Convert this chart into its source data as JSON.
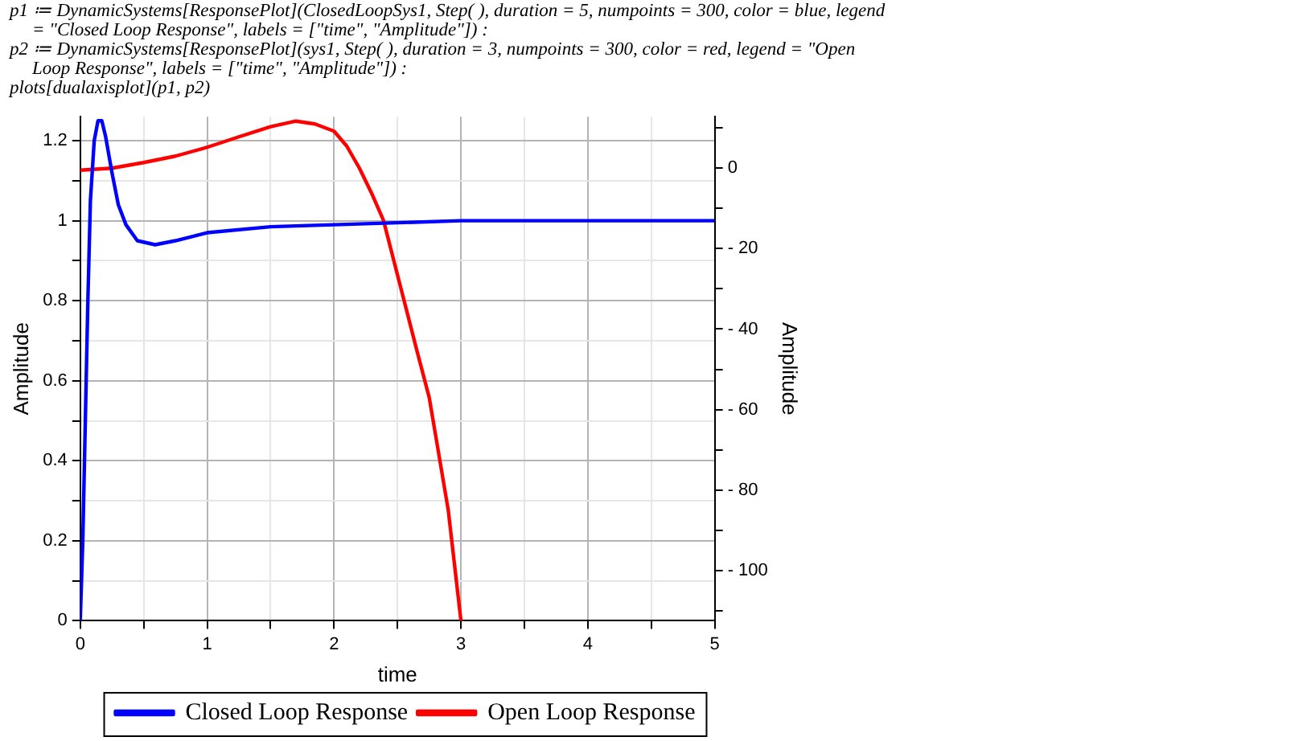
{
  "chart_data": {
    "type": "line",
    "annotations": [
      "p1 ≔ DynamicSystems[ResponsePlot](ClosedLoopSys1, Step( ), duration = 5, numpoints = 300, color = blue, legend = \"Closed Loop Response\", labels = [\"time\", \"Amplitude\"]) :",
      "p2 ≔ DynamicSystems[ResponsePlot](sys1, Step( ), duration = 3, numpoints = 300, color = red, legend = \"Open Loop Response\", labels = [\"time\", \"Amplitude\"]) :",
      "plots[dualaxisplot](p1, p2)"
    ],
    "xlabel": "time",
    "ylabel": "Amplitude",
    "y2label": "Amplitude",
    "series": [
      {
        "name": "Closed Loop Response",
        "color": "#0000ff",
        "x": [
          0,
          0.02,
          0.04,
          0.06,
          0.08,
          0.11,
          0.14,
          0.17,
          0.2,
          0.25,
          0.3,
          0.36,
          0.45,
          0.59,
          0.75,
          1,
          1.5,
          2,
          2.5,
          3,
          4,
          5
        ],
        "values": [
          0,
          0.2,
          0.5,
          0.8,
          1.05,
          1.2,
          1.25,
          1.25,
          1.21,
          1.12,
          1.04,
          0.99,
          0.95,
          0.94,
          0.95,
          0.97,
          0.985,
          0.99,
          0.995,
          1,
          1,
          1
        ]
      },
      {
        "name": "Open Loop Response",
        "color": "#ff0000",
        "axis": "y2",
        "x": [
          0,
          0.25,
          0.5,
          0.75,
          1,
          1.25,
          1.5,
          1.7,
          1.85,
          2,
          2.1,
          2.2,
          2.3,
          2.39,
          2.52,
          2.65,
          2.75,
          2.9,
          3
        ],
        "values": [
          -0.5,
          0,
          1.4,
          3,
          5.2,
          7.8,
          10.3,
          11.7,
          11,
          9.2,
          5.5,
          0,
          -6.5,
          -13,
          -29,
          -45,
          -57,
          -85,
          -112.5
        ]
      }
    ],
    "xlim": [
      0,
      5
    ],
    "xticks": [
      0,
      {
        "value": 0.5,
        "label": null
      },
      1,
      {
        "value": 1.5,
        "label": null
      },
      2,
      {
        "value": 2.5,
        "label": null
      },
      3,
      {
        "value": 3.5,
        "label": null
      },
      4,
      {
        "value": 4.5,
        "label": null
      },
      5
    ],
    "ylim": [
      0,
      1.26
    ],
    "yticks": [
      0,
      {
        "value": 0.1,
        "label": null
      },
      0.2,
      {
        "value": 0.3,
        "label": null
      },
      0.4,
      {
        "value": 0.5,
        "label": null
      },
      0.6,
      {
        "value": 0.7,
        "label": null
      },
      0.8,
      {
        "value": 0.9,
        "label": null
      },
      1,
      {
        "value": 1.1,
        "label": null
      },
      1.2
    ],
    "y2lim": [
      -112.5,
      12.8
    ],
    "y2ticks": [
      {
        "value": -110,
        "label": null
      },
      {
        "value": -100,
        "label": "- 100"
      },
      {
        "value": -90,
        "label": null
      },
      {
        "value": -80,
        "label": "- 80"
      },
      {
        "value": -70,
        "label": null
      },
      {
        "value": -60,
        "label": "- 60"
      },
      {
        "value": -50,
        "label": null
      },
      {
        "value": -40,
        "label": "- 40"
      },
      {
        "value": -30,
        "label": null
      },
      {
        "value": -20,
        "label": "- 20"
      },
      {
        "value": -10,
        "label": null
      },
      0,
      {
        "value": 10,
        "label": null
      }
    ],
    "grid": true,
    "legend": "bottom",
    "marker": "none",
    "line_style": "solid"
  }
}
